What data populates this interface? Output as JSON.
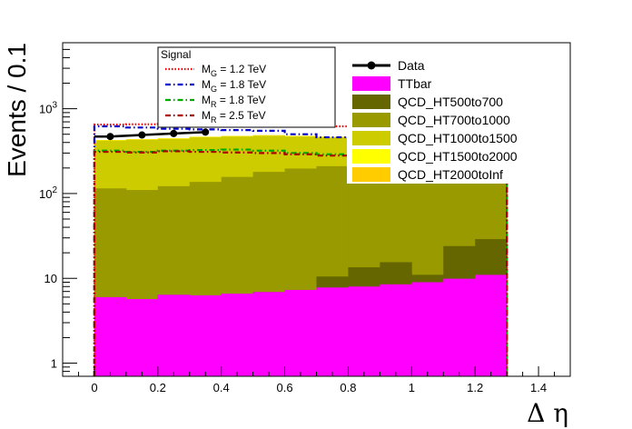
{
  "chart_data": {
    "type": "bar",
    "stacked": true,
    "xlabel": "Δ η",
    "ylabel": "Events / 0.1",
    "xlim": [
      -0.1,
      1.5
    ],
    "ylim": [
      0.7,
      6000
    ],
    "log_y": true,
    "x_ticks": [
      "0",
      "0.2",
      "0.4",
      "0.6",
      "0.8",
      "1",
      "1.2",
      "1.4"
    ],
    "y_ticks": [
      "1",
      "10",
      "10^2",
      "10^3"
    ],
    "x_tick_values": [
      0,
      0.2,
      0.4,
      0.6,
      0.8,
      1.0,
      1.2,
      1.4
    ],
    "y_tick_values": [
      1,
      10,
      100,
      1000
    ],
    "bin_low_edges": [
      0,
      0.1,
      0.2,
      0.3,
      0.4,
      0.5,
      0.6,
      0.7,
      0.8,
      0.9,
      1.0,
      1.1,
      1.2
    ],
    "bin_width": 0.1,
    "cumulative_stack": [
      {
        "name": "TTbar",
        "color": "#ff00ff",
        "values": [
          6,
          5.7,
          6.4,
          6.3,
          6.6,
          6.9,
          7.3,
          7.8,
          8.0,
          8.5,
          9.0,
          9.9,
          11
        ]
      },
      {
        "name": "QCD_HT500to700",
        "color": "#666600",
        "values": [
          6,
          5.7,
          6.4,
          6.3,
          6.6,
          6.9,
          7.3,
          10.5,
          13.5,
          15.5,
          11,
          24,
          29
        ]
      },
      {
        "name": "QCD_HT700to1000",
        "color": "#999900",
        "values": [
          115,
          110,
          122,
          137,
          157,
          180,
          197,
          210,
          225,
          215,
          200,
          180,
          160
        ]
      },
      {
        "name": "QCD_HT1000to1500",
        "color": "#cccc00",
        "values": [
          420,
          430,
          440,
          460,
          470,
          480,
          470,
          460,
          450,
          440,
          430,
          420,
          400
        ]
      },
      {
        "name": "QCD_HT1500to2000",
        "color": "#ffff00",
        "values": [
          425,
          435,
          445,
          465,
          475,
          485,
          475,
          465,
          455,
          445,
          435,
          425,
          405
        ]
      },
      {
        "name": "QCD_HT2000toInf",
        "color": "#ffcc00",
        "values": [
          428,
          438,
          448,
          468,
          478,
          488,
          478,
          468,
          458,
          448,
          438,
          428,
          408
        ]
      }
    ],
    "data_points": {
      "name": "Data",
      "x": [
        0.05,
        0.15,
        0.25,
        0.35
      ],
      "y": [
        470,
        490,
        510,
        530
      ]
    },
    "signal": [
      {
        "name": "M_G = 1.2 TeV",
        "color": "#ff0000",
        "style": "dotted",
        "values": [
          650,
          655,
          660,
          650,
          645,
          640,
          630,
          620,
          610,
          600,
          590,
          580,
          560
        ]
      },
      {
        "name": "M_G = 1.8 TeV",
        "color": "#0000cc",
        "style": "dash-dot",
        "values": [
          620,
          600,
          580,
          570,
          560,
          550,
          500,
          460,
          420,
          400,
          390,
          380,
          370
        ]
      },
      {
        "name": "M_R = 1.8 TeV",
        "color": "#00aa00",
        "style": "dash-dot",
        "values": [
          320,
          310,
          320,
          325,
          330,
          320,
          300,
          290,
          280,
          275,
          270,
          265,
          260
        ]
      },
      {
        "name": "M_R = 2.5 TeV",
        "color": "#aa0000",
        "style": "dash-dot",
        "values": [
          310,
          305,
          315,
          310,
          305,
          300,
          290,
          280,
          275,
          270,
          265,
          260,
          255
        ]
      }
    ],
    "legend_signal": {
      "title": "Signal",
      "entries": [
        {
          "base": "M",
          "sub": "G",
          "rest": " = 1.2 TeV"
        },
        {
          "base": "M",
          "sub": "G",
          "rest": " = 1.8 TeV"
        },
        {
          "base": "M",
          "sub": "R",
          "rest": " = 1.8 TeV"
        },
        {
          "base": "M",
          "sub": "R",
          "rest": " = 2.5 TeV"
        }
      ],
      "placement": "top-center"
    },
    "legend_background": {
      "entries": [
        "Data",
        "TTbar",
        "QCD_HT500to700",
        "QCD_HT700to1000",
        "QCD_HT1000to1500",
        "QCD_HT1500to2000",
        "QCD_HT2000toInf"
      ],
      "placement": "top-right"
    }
  }
}
